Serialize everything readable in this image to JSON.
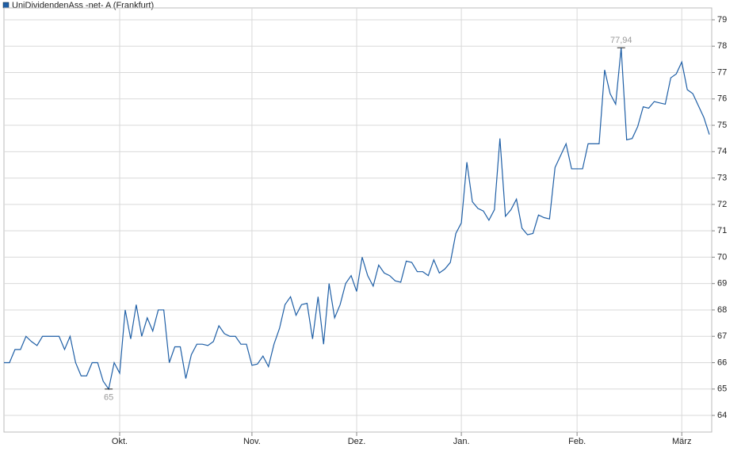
{
  "chart_data": {
    "type": "line",
    "legend": "UniDividendenAss -net- A (Frankfurt)",
    "categories": [
      null,
      null,
      null,
      null,
      null,
      null,
      null,
      null,
      null,
      null,
      null,
      null,
      null,
      null,
      null,
      null,
      null,
      null,
      null,
      null,
      null,
      "Okt.",
      null,
      null,
      null,
      null,
      null,
      null,
      null,
      null,
      null,
      null,
      null,
      null,
      null,
      null,
      null,
      null,
      null,
      null,
      null,
      null,
      null,
      null,
      null,
      "Nov.",
      null,
      null,
      null,
      null,
      null,
      null,
      null,
      null,
      null,
      null,
      null,
      null,
      null,
      null,
      null,
      null,
      null,
      null,
      "Dez.",
      null,
      null,
      null,
      null,
      null,
      null,
      null,
      null,
      null,
      null,
      null,
      null,
      null,
      null,
      null,
      null,
      null,
      null,
      "Jan.",
      null,
      null,
      null,
      null,
      null,
      null,
      null,
      null,
      null,
      null,
      null,
      null,
      null,
      null,
      null,
      null,
      null,
      null,
      null,
      null,
      "Feb.",
      null,
      null,
      null,
      null,
      null,
      null,
      null,
      null,
      null,
      null,
      null,
      null,
      null,
      null,
      null,
      null,
      null,
      null,
      "März",
      null,
      null,
      null,
      null,
      null
    ],
    "series": [
      {
        "name": "UniDividendenAss -net- A (Frankfurt)",
        "color": "#1f5fa6",
        "values": [
          66.0,
          66.0,
          66.5,
          66.5,
          67.0,
          66.8,
          66.65,
          67.0,
          67.0,
          67.0,
          67.0,
          66.5,
          67.0,
          66.0,
          65.5,
          65.5,
          66.0,
          66.0,
          65.3,
          65.0,
          66.0,
          65.6,
          68.0,
          66.9,
          68.2,
          67.0,
          67.7,
          67.2,
          68.0,
          68.0,
          66.0,
          66.6,
          66.6,
          65.4,
          66.3,
          66.7,
          66.7,
          66.65,
          66.8,
          67.4,
          67.1,
          67.0,
          67.0,
          66.7,
          66.7,
          65.9,
          65.95,
          66.25,
          65.85,
          66.7,
          67.3,
          68.2,
          68.5,
          67.8,
          68.2,
          68.25,
          66.9,
          68.5,
          66.7,
          69.0,
          67.7,
          68.2,
          69.0,
          69.3,
          68.7,
          70.0,
          69.3,
          68.9,
          69.7,
          69.4,
          69.3,
          69.1,
          69.05,
          69.85,
          69.8,
          69.45,
          69.45,
          69.3,
          69.9,
          69.4,
          69.55,
          69.8,
          70.9,
          71.3,
          73.6,
          72.1,
          71.85,
          71.75,
          71.4,
          71.8,
          74.5,
          71.55,
          71.8,
          72.2,
          71.1,
          70.85,
          70.9,
          71.6,
          71.5,
          71.45,
          73.4,
          73.85,
          74.3,
          73.35,
          73.35,
          73.35,
          74.3,
          74.3,
          74.3,
          77.1,
          76.2,
          75.8,
          77.94,
          74.45,
          74.5,
          74.95,
          75.7,
          75.65,
          75.9,
          75.85,
          75.8,
          76.8,
          76.95,
          77.4,
          76.35,
          76.2,
          75.75,
          75.3,
          74.65
        ],
        "value_labels": [
          null,
          null,
          null,
          null,
          null,
          null,
          null,
          null,
          null,
          null,
          null,
          null,
          null,
          null,
          null,
          null,
          null,
          null,
          null,
          "65",
          null,
          null,
          null,
          null,
          null,
          null,
          null,
          null,
          null,
          null,
          null,
          null,
          null,
          null,
          null,
          null,
          null,
          null,
          null,
          null,
          null,
          null,
          null,
          null,
          null,
          null,
          null,
          null,
          null,
          null,
          null,
          null,
          null,
          null,
          null,
          null,
          null,
          null,
          null,
          null,
          null,
          null,
          null,
          null,
          null,
          null,
          null,
          null,
          null,
          null,
          null,
          null,
          null,
          null,
          null,
          null,
          null,
          null,
          null,
          null,
          null,
          null,
          null,
          null,
          null,
          null,
          null,
          null,
          null,
          null,
          null,
          null,
          null,
          null,
          null,
          null,
          null,
          null,
          null,
          null,
          null,
          null,
          null,
          null,
          null,
          null,
          null,
          null,
          null,
          null,
          null,
          null,
          "77,94",
          null,
          null,
          null,
          null,
          null,
          null,
          null,
          null,
          null,
          null,
          null,
          null,
          null,
          null,
          null,
          null
        ]
      }
    ],
    "ylim": [
      63.37,
      79.45
    ],
    "yticks": [
      64,
      65,
      66,
      67,
      68,
      69,
      70,
      71,
      72,
      73,
      74,
      75,
      76,
      77,
      78,
      79
    ],
    "grid": true,
    "legend_position": "top-left"
  }
}
